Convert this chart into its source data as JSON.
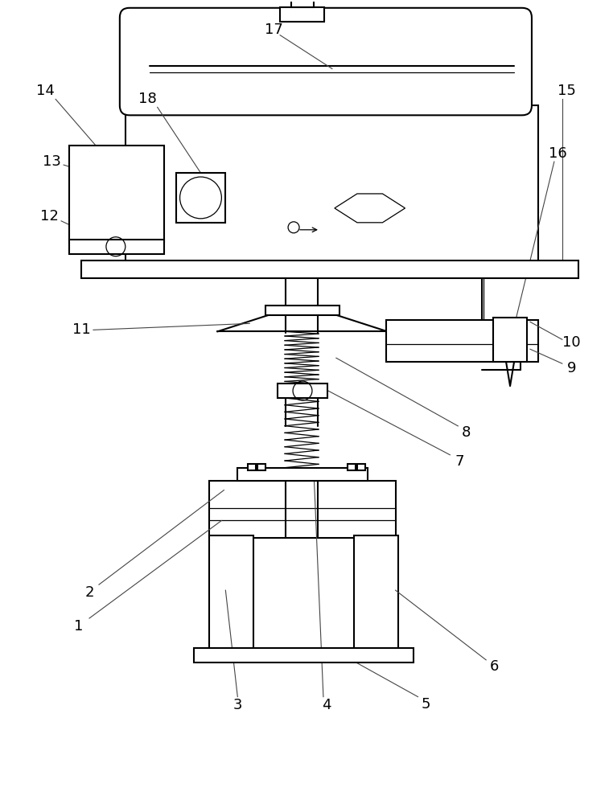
{
  "bg_color": "#ffffff",
  "line_color": "#000000",
  "lw": 1.5,
  "tlw": 0.9,
  "figsize": [
    7.57,
    10.0
  ],
  "dpi": 100,
  "label_fs": 13
}
